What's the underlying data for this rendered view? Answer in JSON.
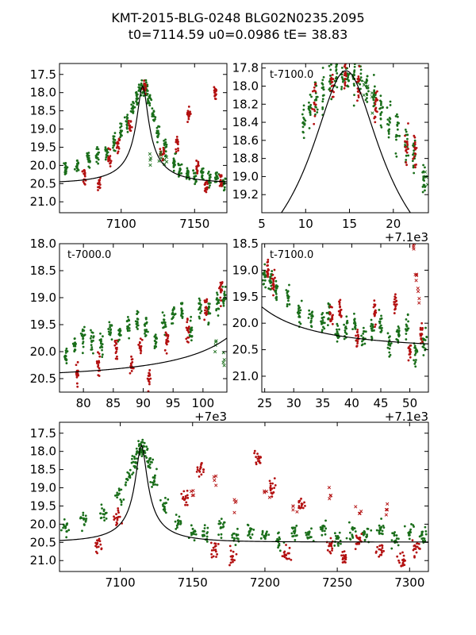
{
  "figure": {
    "title_line1": "KMT-2015-BLG-0248 BLG02N0235.2095",
    "title_line2": "t0=7114.59 u0=0.0986 tE=  38.83"
  },
  "model": {
    "t0": 7114.59,
    "u0": 0.0986,
    "tE": 38.83,
    "base_mag": 20.49,
    "peak_mag": 17.83
  },
  "colors": {
    "green": "#1a6e1a",
    "red": "#b31010",
    "curve": "#000000"
  },
  "chart_data": [
    {
      "id": "top-left",
      "type": "scatter",
      "x_offset": 0,
      "xlim": [
        7058,
        7172
      ],
      "ylim": [
        21.3,
        17.2
      ],
      "y_inverted": true,
      "xticks": [
        7100,
        7150
      ],
      "xtick_labels": [
        "7100",
        "7150"
      ],
      "yticks": [
        17.5,
        18.0,
        18.5,
        19.0,
        19.5,
        20.0,
        20.5,
        21.0
      ],
      "ytick_labels": [
        "17.5",
        "18.0",
        "18.5",
        "19.0",
        "19.5",
        "20.0",
        "20.5",
        "21.0"
      ],
      "annotation": "",
      "offset_label": "",
      "series": [
        {
          "name": "green points",
          "x": [
            7062,
            7070,
            7078,
            7084,
            7090,
            7095,
            7100,
            7104,
            7108,
            7111,
            7113,
            7115,
            7117,
            7119,
            7122,
            7125,
            7130,
            7136,
            7140,
            7145,
            7150,
            7155,
            7160,
            7165,
            7170
          ],
          "y": [
            20.1,
            20.0,
            19.8,
            19.7,
            19.6,
            19.4,
            19.1,
            18.8,
            18.4,
            18.1,
            17.95,
            17.85,
            17.95,
            18.2,
            18.6,
            19.1,
            19.5,
            19.9,
            20.1,
            20.2,
            20.3,
            20.2,
            20.4,
            20.3,
            20.5
          ]
        },
        {
          "name": "red points",
          "x": [
            7075,
            7085,
            7092,
            7098,
            7106,
            7116,
            7128,
            7138,
            7146,
            7152,
            7158,
            7164,
            7168
          ],
          "y": [
            20.3,
            20.5,
            19.8,
            19.4,
            18.9,
            17.9,
            19.7,
            19.4,
            18.6,
            20.1,
            20.6,
            18.0,
            20.4
          ]
        },
        {
          "name": "green crosses",
          "x": [
            7120,
            7127,
            7130
          ],
          "y": [
            19.8,
            19.7,
            19.9
          ]
        }
      ]
    },
    {
      "id": "top-right",
      "type": "scatter",
      "x_offset": 7100,
      "xlim": [
        5,
        24
      ],
      "ylim": [
        19.4,
        17.75
      ],
      "y_inverted": true,
      "xticks": [
        5,
        10,
        15,
        20
      ],
      "xtick_labels": [
        "5",
        "10",
        "15",
        "20"
      ],
      "yticks": [
        17.8,
        18.0,
        18.2,
        18.4,
        18.6,
        18.8,
        19.0,
        19.2
      ],
      "ytick_labels": [
        "17.8",
        "18.0",
        "18.2",
        "18.4",
        "18.6",
        "18.8",
        "19.0",
        "19.2"
      ],
      "annotation": "t-7100.0",
      "offset_label": "+7.1e3",
      "series": [
        {
          "name": "green points",
          "x": [
            9.8,
            10.5,
            11.2,
            12.0,
            12.8,
            13.5,
            14.2,
            14.8,
            15.5,
            16.2,
            17.0,
            17.8,
            18.6,
            19.5,
            20.5,
            21.5,
            22.4,
            23.5
          ],
          "y": [
            18.35,
            18.25,
            18.12,
            18.02,
            17.95,
            17.9,
            17.87,
            17.86,
            17.88,
            17.93,
            18.02,
            18.13,
            18.25,
            18.42,
            18.55,
            18.65,
            18.8,
            19.0
          ]
        },
        {
          "name": "red points",
          "x": [
            11.0,
            13.0,
            14.5,
            16.0,
            18.0,
            21.5,
            22.5
          ],
          "y": [
            18.2,
            18.0,
            17.88,
            17.95,
            18.2,
            18.62,
            18.75
          ]
        },
        {
          "name": "green crosses",
          "x": [
            16.8,
            17.6,
            23.8
          ],
          "y": [
            18.0,
            18.12,
            19.0
          ]
        }
      ]
    },
    {
      "id": "mid-left",
      "type": "scatter",
      "x_offset": 7000,
      "xlim": [
        76,
        104
      ],
      "ylim": [
        20.75,
        18.0
      ],
      "y_inverted": true,
      "xticks": [
        80,
        85,
        90,
        95,
        100
      ],
      "xtick_labels": [
        "80",
        "85",
        "90",
        "95",
        "100"
      ],
      "yticks": [
        18.0,
        18.5,
        19.0,
        19.5,
        20.0,
        20.5
      ],
      "ytick_labels": [
        "18.0",
        "18.5",
        "19.0",
        "19.5",
        "20.0",
        "20.5"
      ],
      "annotation": "t-7000.0",
      "offset_label": "+7e3",
      "series": [
        {
          "name": "green points",
          "x": [
            77,
            78.5,
            80,
            81.5,
            83,
            84.5,
            86,
            87.5,
            89,
            90.5,
            92,
            93.5,
            95,
            96.5,
            98,
            99.5,
            101,
            102.5,
            103.5
          ],
          "y": [
            20.1,
            19.9,
            19.7,
            19.8,
            19.9,
            19.6,
            19.7,
            19.5,
            19.4,
            19.6,
            19.8,
            19.5,
            19.3,
            19.2,
            19.6,
            19.2,
            19.3,
            19.1,
            19.0
          ]
        },
        {
          "name": "red points",
          "x": [
            79,
            82.5,
            85.5,
            88,
            89.5,
            91,
            94,
            97.5,
            100.5,
            103
          ],
          "y": [
            20.4,
            20.2,
            20.0,
            20.3,
            19.9,
            20.5,
            19.8,
            19.6,
            19.2,
            18.9
          ]
        },
        {
          "name": "green crosses",
          "x": [
            102,
            103.5
          ],
          "y": [
            19.8,
            20.2
          ]
        }
      ]
    },
    {
      "id": "mid-right",
      "type": "scatter",
      "x_offset": 7100,
      "xlim": [
        24.5,
        53.2
      ],
      "ylim": [
        21.3,
        18.5
      ],
      "y_inverted": true,
      "xticks": [
        25,
        30,
        35,
        40,
        45,
        50
      ],
      "xtick_labels": [
        "25",
        "30",
        "35",
        "40",
        "45",
        "50"
      ],
      "yticks": [
        18.5,
        19.0,
        19.5,
        20.0,
        20.5,
        21.0
      ],
      "ytick_labels": [
        "18.5",
        "19.0",
        "19.5",
        "20.0",
        "20.5",
        "21.0"
      ],
      "annotation": "t-7100.0",
      "offset_label": "+7.1e3",
      "series": [
        {
          "name": "green points",
          "x": [
            25,
            26,
            27,
            29,
            31,
            33,
            35,
            36,
            37.5,
            39,
            40.5,
            42,
            43.5,
            45,
            46.5,
            48,
            49.5,
            51,
            52.5
          ],
          "y": [
            19.1,
            19.2,
            19.4,
            19.5,
            19.8,
            19.9,
            20.0,
            19.8,
            20.2,
            20.1,
            20.0,
            20.3,
            20.1,
            20.0,
            20.4,
            20.2,
            20.1,
            20.6,
            20.3
          ]
        },
        {
          "name": "red points",
          "x": [
            25.5,
            26.5,
            36.5,
            38,
            41,
            44,
            47.5,
            50,
            52
          ],
          "y": [
            19.0,
            19.3,
            19.9,
            19.7,
            20.3,
            19.8,
            19.6,
            20.5,
            20.2
          ]
        },
        {
          "name": "red crosses",
          "x": [
            50.8,
            51.2,
            51.6
          ],
          "y": [
            18.6,
            19.1,
            19.4
          ]
        }
      ]
    },
    {
      "id": "bottom",
      "type": "scatter",
      "x_offset": 0,
      "xlim": [
        7058,
        7313
      ],
      "ylim": [
        21.3,
        17.2
      ],
      "y_inverted": true,
      "xticks": [
        7100,
        7150,
        7200,
        7250,
        7300
      ],
      "xtick_labels": [
        "7100",
        "7150",
        "7200",
        "7250",
        "7300"
      ],
      "yticks": [
        17.5,
        18.0,
        18.5,
        19.0,
        19.5,
        20.0,
        20.5,
        21.0
      ],
      "ytick_labels": [
        "17.5",
        "18.0",
        "18.5",
        "19.0",
        "19.5",
        "20.0",
        "20.5",
        "21.0"
      ],
      "annotation": "",
      "offset_label": "",
      "series": [
        {
          "name": "green points",
          "x": [
            7062,
            7075,
            7088,
            7100,
            7106,
            7110,
            7113,
            7115,
            7117,
            7120,
            7124,
            7130,
            7140,
            7150,
            7160,
            7170,
            7180,
            7190,
            7200,
            7210,
            7220,
            7230,
            7240,
            7250,
            7260,
            7270,
            7280,
            7290,
            7300,
            7310
          ],
          "y": [
            20.1,
            19.9,
            19.7,
            19.2,
            18.7,
            18.3,
            18.0,
            17.85,
            18.0,
            18.3,
            18.8,
            19.5,
            20.0,
            20.2,
            20.3,
            20.1,
            20.4,
            20.2,
            20.3,
            20.5,
            20.2,
            20.3,
            20.1,
            20.4,
            20.2,
            20.3,
            20.1,
            20.4,
            20.2,
            20.3
          ]
        },
        {
          "name": "red points",
          "x": [
            7085,
            7098,
            7145,
            7155,
            7165,
            7178,
            7195,
            7205,
            7215,
            7225,
            7245,
            7255,
            7265,
            7280,
            7295,
            7305
          ],
          "y": [
            20.6,
            19.8,
            19.3,
            18.5,
            20.7,
            20.9,
            18.2,
            19.0,
            20.8,
            19.5,
            20.6,
            20.9,
            20.5,
            20.7,
            21.0,
            20.6
          ]
        },
        {
          "name": "red crosses",
          "x": [
            7150,
            7165,
            7180,
            7200,
            7220,
            7245,
            7265,
            7285
          ],
          "y": [
            19.2,
            18.7,
            19.4,
            19.1,
            19.5,
            19.3,
            19.7,
            19.6
          ]
        }
      ]
    }
  ]
}
